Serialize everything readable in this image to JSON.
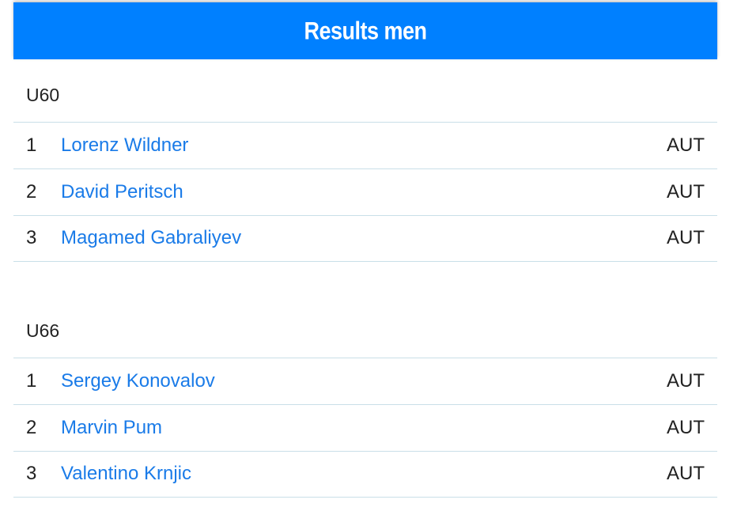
{
  "header": {
    "title": "Results men"
  },
  "sections": [
    {
      "category": "U60",
      "results": [
        {
          "rank": 1,
          "name": "Lorenz Wildner",
          "country": "AUT"
        },
        {
          "rank": 2,
          "name": "David Peritsch",
          "country": "AUT"
        },
        {
          "rank": 3,
          "name": "Magamed Gabraliyev",
          "country": "AUT"
        }
      ]
    },
    {
      "category": "U66",
      "results": [
        {
          "rank": 1,
          "name": "Sergey Konovalov",
          "country": "AUT"
        },
        {
          "rank": 2,
          "name": "Marvin Pum",
          "country": "AUT"
        },
        {
          "rank": 3,
          "name": "Valentino Krnjic",
          "country": "AUT"
        }
      ]
    }
  ]
}
